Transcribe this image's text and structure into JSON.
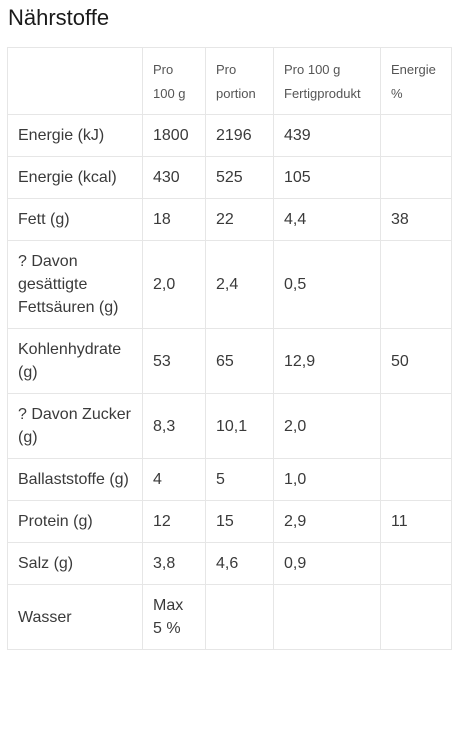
{
  "page": {
    "title": "Nährstoffe"
  },
  "table": {
    "headers": [
      {
        "line1": "",
        "line2": ""
      },
      {
        "line1": "Pro",
        "line2": "100 g"
      },
      {
        "line1": "Pro",
        "line2": "portion"
      },
      {
        "line1": "Pro 100 g",
        "line2": "Fertigprodukt"
      },
      {
        "line1": "Energie",
        "line2": "%"
      }
    ],
    "rows": [
      [
        "Energie (kJ)",
        "1800",
        "2196",
        "439",
        ""
      ],
      [
        "Energie (kcal)",
        "430",
        "525",
        "105",
        ""
      ],
      [
        "Fett (g)",
        "18",
        "22",
        "4,4",
        "38"
      ],
      [
        "? Davon gesättigte Fettsäuren (g)",
        "2,0",
        "2,4",
        "0,5",
        ""
      ],
      [
        "Kohlenhydrate (g)",
        "53",
        "65",
        "12,9",
        "50"
      ],
      [
        "? Davon Zucker (g)",
        "8,3",
        "10,1",
        "2,0",
        ""
      ],
      [
        "Ballaststoffe (g)",
        "4",
        "5",
        "1,0",
        ""
      ],
      [
        "Protein (g)",
        "12",
        "15",
        "2,9",
        "11"
      ],
      [
        "Salz (g)",
        "3,8",
        "4,6",
        "0,9",
        ""
      ],
      [
        "Wasser",
        "Max 5 %",
        "",
        "",
        ""
      ]
    ]
  }
}
